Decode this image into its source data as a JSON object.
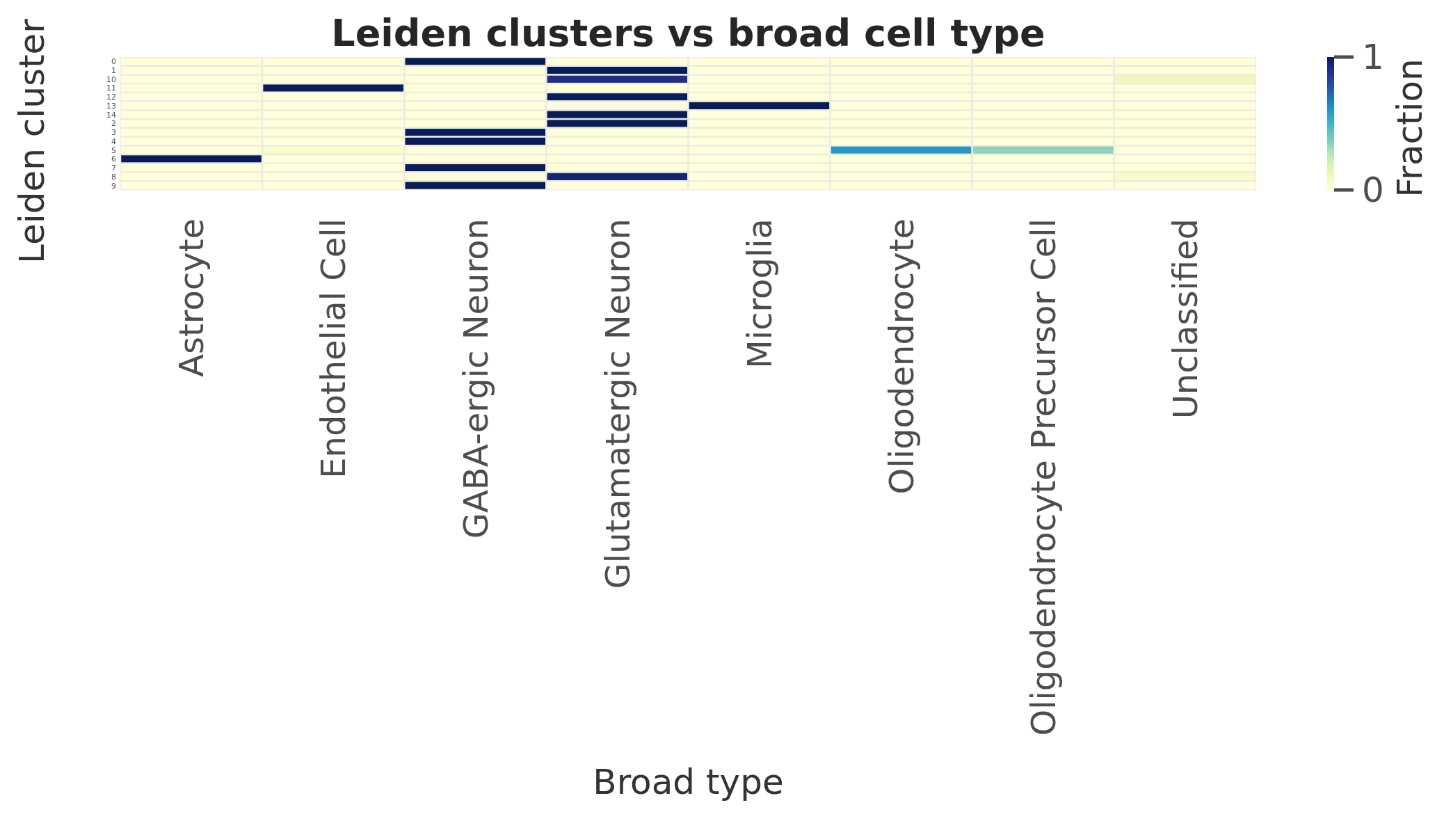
{
  "chart_data": {
    "type": "heatmap",
    "title": "Leiden clusters vs broad cell type",
    "xlabel": "Broad type",
    "ylabel": "Leiden cluster",
    "clabel": "Fraction",
    "categories": [
      "Astrocyte",
      "Endothelial Cell",
      "GABA-ergic Neuron",
      "Glutamatergic Neuron",
      "Microglia",
      "Oligodendrocyte",
      "Oligodendrocyte Precursor Cell",
      "Unclassified"
    ],
    "y_categories": [
      "0",
      "1",
      "10",
      "11",
      "12",
      "13",
      "14",
      "2",
      "3",
      "4",
      "5",
      "6",
      "7",
      "8",
      "9"
    ],
    "cells": [
      [
        0,
        0,
        1,
        0,
        0,
        0,
        0,
        0
      ],
      [
        0,
        0,
        0,
        1,
        0,
        0,
        0,
        0
      ],
      [
        0,
        0,
        0,
        0.9,
        0,
        0,
        0,
        0.1
      ],
      [
        0,
        1,
        0,
        0,
        0,
        0,
        0,
        0
      ],
      [
        0,
        0,
        0,
        1,
        0,
        0,
        0,
        0
      ],
      [
        0,
        0,
        0,
        0,
        1,
        0,
        0,
        0
      ],
      [
        0,
        0,
        0,
        1,
        0,
        0,
        0,
        0
      ],
      [
        0,
        0,
        0,
        1,
        0,
        0,
        0,
        0
      ],
      [
        0,
        0,
        1,
        0,
        0,
        0,
        0,
        0
      ],
      [
        0,
        0,
        1,
        0,
        0,
        0,
        0,
        0
      ],
      [
        0,
        0.05,
        0,
        0,
        0,
        0.6,
        0.35,
        0
      ],
      [
        1,
        0,
        0,
        0,
        0,
        0,
        0,
        0
      ],
      [
        0,
        0,
        1,
        0,
        0,
        0,
        0,
        0
      ],
      [
        0,
        0,
        0,
        0.95,
        0,
        0,
        0,
        0.05
      ],
      [
        0,
        0,
        1,
        0,
        0,
        0,
        0,
        0
      ]
    ],
    "clim": [
      0,
      1
    ],
    "cticks": [
      0,
      1
    ]
  }
}
